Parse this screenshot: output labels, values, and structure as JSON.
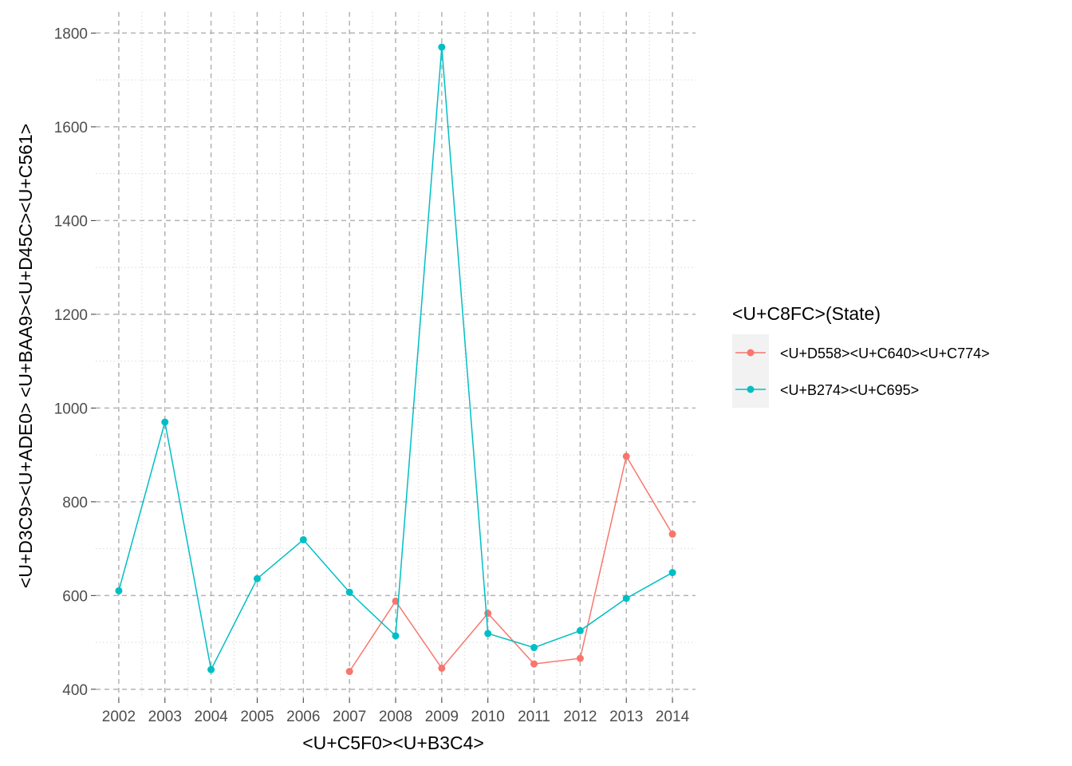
{
  "chart_data": {
    "type": "line",
    "title": "",
    "xlabel": "<U+C5F0><U+B3C4>",
    "ylabel": "<U+D3C9><U+ADE0> <U+BAA9><U+D45C><U+C561>",
    "x": [
      2002,
      2003,
      2004,
      2005,
      2006,
      2007,
      2008,
      2009,
      2010,
      2011,
      2012,
      2013,
      2014
    ],
    "x_tick_labels": [
      "2002",
      "2003",
      "2004",
      "2005",
      "2006",
      "2007",
      "2008",
      "2009",
      "2010",
      "2011",
      "2012",
      "2013",
      "2014"
    ],
    "y_ticks": [
      400,
      600,
      800,
      1000,
      1200,
      1400,
      1600,
      1800
    ],
    "y_tick_labels": [
      "400",
      "600",
      "800",
      "1000",
      "1200",
      "1400",
      "1600",
      "1800"
    ],
    "xlim": [
      2001.5,
      2014.5
    ],
    "ylim": [
      381,
      1845
    ],
    "grid": true,
    "legend": {
      "title": "<U+C8FC>(State)",
      "position": "right"
    },
    "series": [
      {
        "name": "<U+D558><U+C640><U+C774>",
        "color": "#F8766D",
        "x": [
          2007,
          2008,
          2009,
          2010,
          2011,
          2012,
          2013,
          2014
        ],
        "values": [
          438,
          588,
          445,
          562,
          454,
          466,
          897,
          731
        ]
      },
      {
        "name": "<U+B274><U+C695>",
        "color": "#00BFC4",
        "x": [
          2002,
          2003,
          2004,
          2005,
          2006,
          2007,
          2008,
          2009,
          2010,
          2011,
          2012,
          2013,
          2014
        ],
        "values": [
          610,
          970,
          442,
          636,
          719,
          607,
          514,
          1770,
          519,
          489,
          525,
          594,
          649
        ]
      }
    ]
  }
}
